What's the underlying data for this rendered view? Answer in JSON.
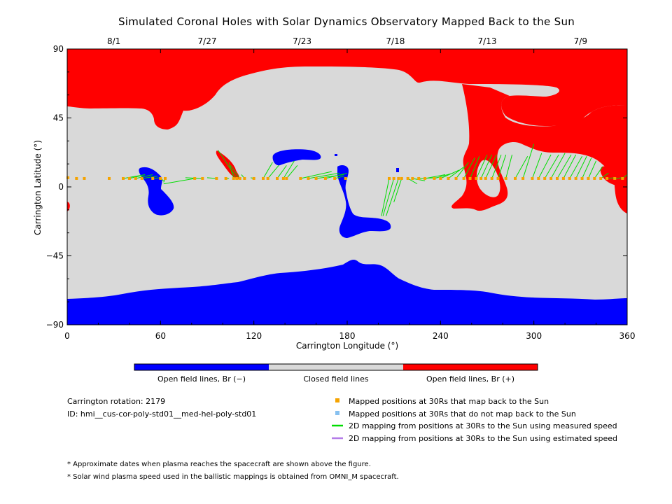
{
  "chart_data": {
    "type": "map",
    "title": "Simulated Coronal Holes with Solar Dynamics Observatory Mapped Back to the Sun",
    "xlabel": "Carrington Longitude (°)",
    "ylabel": "Carrington Latitude (°)",
    "xlim": [
      0,
      360
    ],
    "ylim": [
      -90,
      90
    ],
    "x_ticks": [
      "0",
      "60",
      "120",
      "180",
      "240",
      "300",
      "360"
    ],
    "y_ticks": [
      "90",
      "45",
      "0",
      "−45",
      "−90"
    ],
    "top_axis": [
      {
        "label": "8/1",
        "lon": 30
      },
      {
        "label": "7/27",
        "lon": 90
      },
      {
        "label": "7/23",
        "lon": 151
      },
      {
        "label": "7/18",
        "lon": 211
      },
      {
        "label": "7/13",
        "lon": 270
      },
      {
        "label": "7/9",
        "lon": 330
      }
    ],
    "colorbar": [
      {
        "label": "Open field lines, Br (−)",
        "color": "#0000ff"
      },
      {
        "label": "Closed field lines",
        "color": "#d9d9d9"
      },
      {
        "label": "Open field lines, Br (+)",
        "color": "#ff0000"
      }
    ],
    "colors": {
      "negative": "#0000ff",
      "closed": "#d9d9d9",
      "positive": "#ff0000",
      "point": "#f5a300",
      "point_nomap": "#87c1f0",
      "line_measured": "#00dd00",
      "line_estimated": "#b47ce8"
    },
    "mapped_points": [
      {
        "x": 0.5,
        "y": 6,
        "sun": [
          0.5,
          6
        ]
      },
      {
        "x": 6,
        "y": 5.5,
        "sun": [
          6,
          5.5
        ]
      },
      {
        "x": 11,
        "y": 5.5,
        "sun": [
          11,
          5.5
        ]
      },
      {
        "x": 27,
        "y": 5.5,
        "sun": [
          27,
          5.5
        ]
      },
      {
        "x": 36,
        "y": 5.5,
        "sun": [
          50,
          8
        ]
      },
      {
        "x": 40,
        "y": 5.5,
        "sun": [
          50,
          8
        ]
      },
      {
        "x": 44,
        "y": 5.5,
        "sun": [
          55,
          8
        ]
      },
      {
        "x": 48,
        "y": 5.5,
        "sun": [
          58,
          7
        ]
      },
      {
        "x": 55,
        "y": 5.5,
        "sun": [
          60,
          6
        ]
      },
      {
        "x": 60,
        "y": 5.5,
        "sun": [
          62,
          4
        ]
      },
      {
        "x": 63,
        "y": 5.5,
        "sun": [
          62,
          3
        ]
      },
      {
        "x": 82,
        "y": 5.5,
        "sun": [
          62,
          2
        ]
      },
      {
        "x": 87,
        "y": 5.5,
        "sun": [
          76,
          6
        ]
      },
      {
        "x": 96,
        "y": 5.5,
        "sun": [
          90,
          6
        ]
      },
      {
        "x": 102,
        "y": 5.5,
        "sun": [
          104,
          5.5
        ]
      },
      {
        "x": 107,
        "y": 5.5,
        "sun": [
          104,
          16
        ]
      },
      {
        "x": 109,
        "y": 5.5,
        "sun": [
          97,
          24
        ]
      },
      {
        "x": 111,
        "y": 5.5,
        "sun": [
          105,
          14
        ]
      },
      {
        "x": 114,
        "y": 5.5,
        "sun": [
          112,
          8
        ]
      },
      {
        "x": 120,
        "y": 5.5,
        "sun": [
          118,
          6
        ]
      },
      {
        "x": 126,
        "y": 5.5,
        "sun": [
          132,
          16
        ]
      },
      {
        "x": 129,
        "y": 5.5,
        "sun": [
          136,
          14
        ]
      },
      {
        "x": 135,
        "y": 5.5,
        "sun": [
          141,
          14
        ]
      },
      {
        "x": 139,
        "y": 5.5,
        "sun": [
          146,
          17
        ]
      },
      {
        "x": 141,
        "y": 5.5,
        "sun": [
          148,
          14
        ]
      },
      {
        "x": 150,
        "y": 5.5,
        "sun": [
          170,
          10
        ]
      },
      {
        "x": 155,
        "y": 5.5,
        "sun": [
          175,
          9
        ]
      },
      {
        "x": 160,
        "y": 5.5,
        "sun": [
          178,
          8
        ]
      },
      {
        "x": 166,
        "y": 5.5,
        "sun": [
          180,
          9
        ]
      },
      {
        "x": 172,
        "y": 5.5,
        "sun": [
          178,
          7
        ]
      },
      {
        "x": 179,
        "y": 5.5,
        "sun": [
          178,
          6
        ]
      },
      {
        "x": 207,
        "y": 5.5,
        "sun": [
          202,
          -19
        ]
      },
      {
        "x": 210,
        "y": 5.5,
        "sun": [
          203,
          -19
        ]
      },
      {
        "x": 213,
        "y": 5.5,
        "sun": [
          205,
          -19
        ]
      },
      {
        "x": 215,
        "y": 5.5,
        "sun": [
          210,
          -10
        ]
      },
      {
        "x": 219,
        "y": 5.5,
        "sun": [
          225,
          2
        ]
      },
      {
        "x": 222,
        "y": 5.5,
        "sun": [
          230,
          4
        ]
      },
      {
        "x": 226,
        "y": 5.5,
        "sun": [
          238,
          6
        ]
      },
      {
        "x": 230,
        "y": 5.5,
        "sun": [
          243,
          8
        ]
      },
      {
        "x": 236,
        "y": 5.5,
        "sun": [
          248,
          9
        ]
      },
      {
        "x": 240,
        "y": 5.5,
        "sun": [
          252,
          11
        ]
      },
      {
        "x": 245,
        "y": 5.5,
        "sun": [
          255,
          13
        ]
      },
      {
        "x": 250,
        "y": 5.5,
        "sun": [
          258,
          16
        ]
      },
      {
        "x": 255,
        "y": 5.5,
        "sun": [
          262,
          19
        ]
      },
      {
        "x": 259,
        "y": 5.5,
        "sun": [
          265,
          20
        ]
      },
      {
        "x": 263,
        "y": 5.5,
        "sun": [
          270,
          21
        ]
      },
      {
        "x": 266,
        "y": 5.5,
        "sun": [
          273,
          21
        ]
      },
      {
        "x": 269,
        "y": 5.5,
        "sun": [
          276,
          21
        ]
      },
      {
        "x": 273,
        "y": 5.5,
        "sun": [
          279,
          21
        ]
      },
      {
        "x": 277,
        "y": 5.5,
        "sun": [
          282,
          21
        ]
      },
      {
        "x": 282,
        "y": 5.5,
        "sun": [
          286,
          21
        ]
      },
      {
        "x": 288,
        "y": 5.5,
        "sun": [
          296,
          20
        ]
      },
      {
        "x": 293,
        "y": 5.5,
        "sun": [
          300,
          28
        ]
      },
      {
        "x": 299,
        "y": 5.5,
        "sun": [
          305,
          22
        ]
      },
      {
        "x": 303,
        "y": 5.5,
        "sun": [
          311,
          21
        ]
      },
      {
        "x": 307,
        "y": 5.5,
        "sun": [
          316,
          21
        ]
      },
      {
        "x": 311,
        "y": 5.5,
        "sun": [
          320,
          22
        ]
      },
      {
        "x": 315,
        "y": 5.5,
        "sun": [
          324,
          21
        ]
      },
      {
        "x": 319,
        "y": 5.5,
        "sun": [
          327,
          21
        ]
      },
      {
        "x": 323,
        "y": 5.5,
        "sun": [
          331,
          20
        ]
      },
      {
        "x": 327,
        "y": 5.5,
        "sun": [
          334,
          20
        ]
      },
      {
        "x": 331,
        "y": 5.5,
        "sun": [
          337,
          19
        ]
      },
      {
        "x": 335,
        "y": 5.5,
        "sun": [
          340,
          17
        ]
      },
      {
        "x": 339,
        "y": 5.5,
        "sun": [
          344,
          13
        ]
      },
      {
        "x": 343,
        "y": 5.5,
        "sun": [
          348,
          9
        ]
      },
      {
        "x": 347,
        "y": 5.5,
        "sun": [
          352,
          6
        ]
      },
      {
        "x": 352,
        "y": 5.5,
        "sun": [
          357,
          6
        ]
      },
      {
        "x": 357,
        "y": 5.5,
        "sun": [
          360,
          8
        ]
      }
    ]
  },
  "info": {
    "rotation": "Carrington rotation: 2179",
    "id": "ID: hmi__cus-cor-poly-std01__med-hel-poly-std01"
  },
  "legend": {
    "items": [
      "Mapped positions at 30Rs that map back to the Sun",
      "Mapped positions at 30Rs that do not map back to the Sun",
      "2D mapping from positions at 30Rs to the Sun using measured speed",
      "2D mapping from positions at 30Rs to the Sun using estimated speed"
    ]
  },
  "notes": [
    "* Approximate dates when plasma reaches the spacecraft are shown above the figure.",
    "* Solar wind plasma speed used in the ballistic mappings is obtained from OMNI_M spacecraft."
  ]
}
